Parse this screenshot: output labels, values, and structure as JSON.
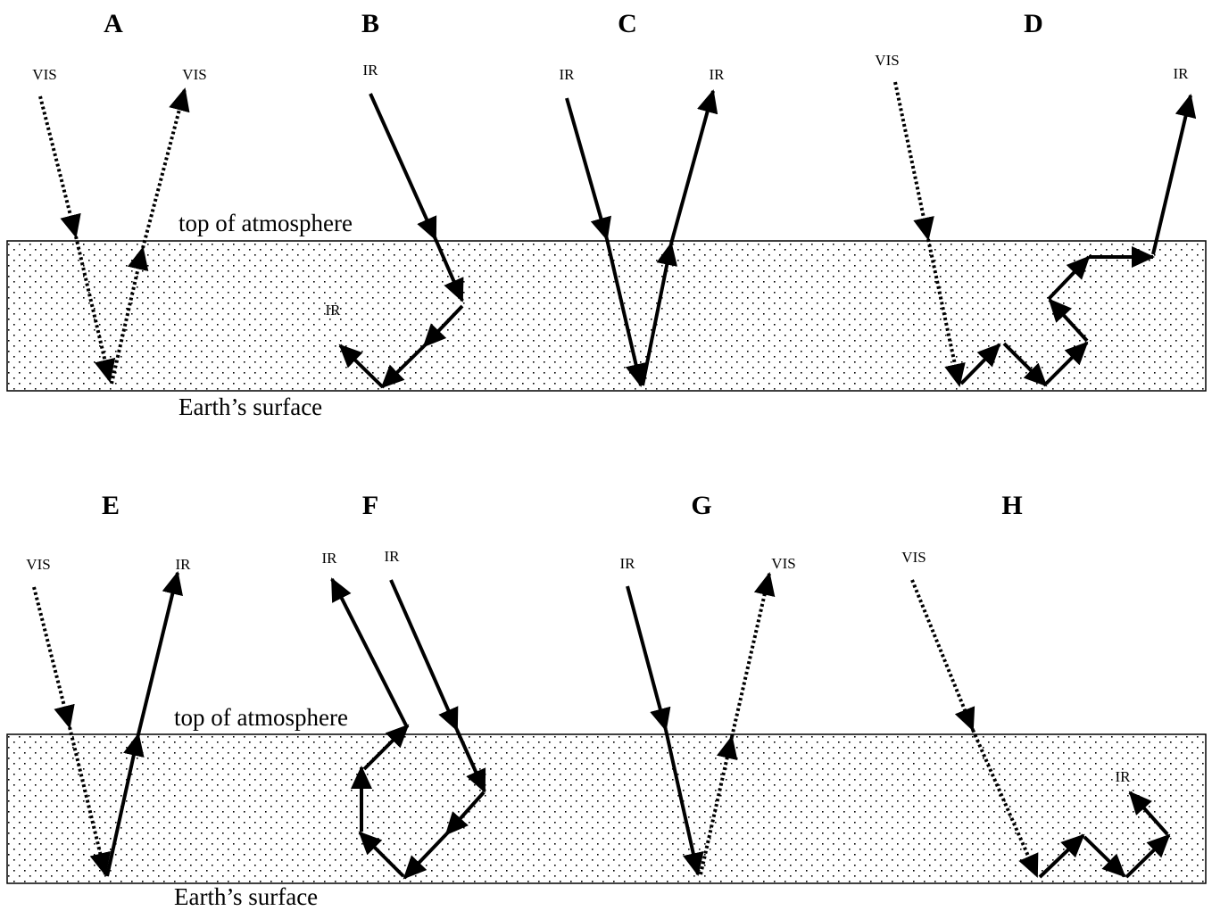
{
  "top": {
    "atmosphere_label": "top of atmosphere",
    "surface_label": "Earth’s surface"
  },
  "bottom": {
    "atmosphere_label": "top of atmosphere",
    "surface_label": "Earth’s surface"
  },
  "panels": [
    {
      "label": "A",
      "texts": [
        "VIS",
        "VIS"
      ]
    },
    {
      "label": "B",
      "texts": [
        "IR",
        "IR"
      ]
    },
    {
      "label": "C",
      "texts": [
        "IR",
        "IR"
      ]
    },
    {
      "label": "D",
      "texts": [
        "VIS",
        "IR"
      ]
    },
    {
      "label": "E",
      "texts": [
        "VIS",
        "IR"
      ]
    },
    {
      "label": "F",
      "texts": [
        "IR",
        "IR"
      ]
    },
    {
      "label": "G",
      "texts": [
        "IR",
        "VIS"
      ]
    },
    {
      "label": "H",
      "texts": [
        "VIS",
        "IR"
      ]
    }
  ]
}
